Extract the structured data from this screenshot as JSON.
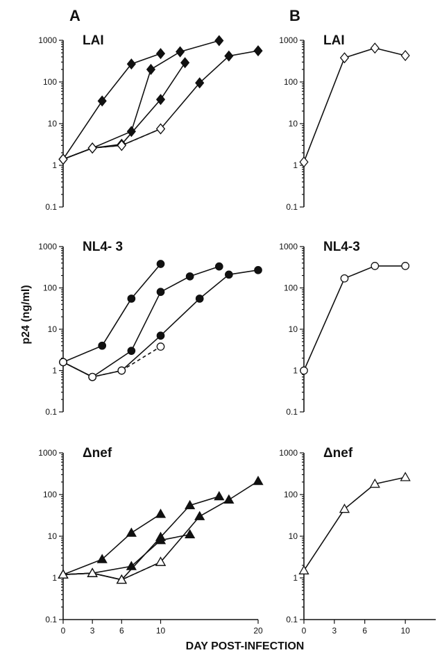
{
  "figure": {
    "panel_letters": [
      "A",
      "B"
    ],
    "ylabel": "p24 (ng/ml)",
    "xlabel": "DAY POST-INFECTION"
  },
  "chart_data": [
    {
      "type": "line",
      "panel": "A",
      "title": "LAI",
      "yscale": "log",
      "ylim": [
        0.1,
        1000
      ],
      "yticks": [
        "0.1",
        "1",
        "10",
        "100",
        "1000"
      ],
      "xlim": [
        0,
        20
      ],
      "xticks": [
        "0",
        "3",
        "6",
        "10",
        "20"
      ],
      "marker": "diamond",
      "series": [
        {
          "style": "solid",
          "filled": true,
          "x": [
            0,
            4,
            7,
            10
          ],
          "y": [
            1.4,
            35,
            270,
            480
          ]
        },
        {
          "style": "solid",
          "filled": true,
          "x": [
            0,
            3,
            7,
            9,
            12,
            16
          ],
          "y": [
            1.4,
            2.6,
            6.5,
            200,
            530,
            980
          ]
        },
        {
          "style": "solid",
          "filled": true,
          "x": [
            0,
            3,
            6,
            10,
            12.5
          ],
          "y": [
            1.4,
            2.6,
            3.2,
            38,
            290
          ]
        },
        {
          "style": "solid",
          "filled": true,
          "x": [
            0,
            3,
            6,
            10,
            14,
            17,
            20
          ],
          "y": [
            1.4,
            2.6,
            3.0,
            7.5,
            95,
            420,
            560
          ]
        },
        {
          "style": "dashed",
          "filled": false,
          "x": [
            0,
            3,
            6,
            10
          ],
          "y": [
            1.4,
            2.6,
            3.0,
            7.5
          ]
        }
      ]
    },
    {
      "type": "line",
      "panel": "B",
      "title": "LAI",
      "yscale": "log",
      "ylim": [
        0.1,
        1000
      ],
      "yticks": [
        "0.1",
        "1",
        "10",
        "100",
        "1000"
      ],
      "xlim": [
        0,
        13
      ],
      "xticks": [
        "0",
        "3",
        "6",
        "10"
      ],
      "marker": "diamond",
      "series": [
        {
          "style": "solid",
          "filled": false,
          "x": [
            0,
            4,
            7,
            10
          ],
          "y": [
            1.2,
            380,
            650,
            430
          ]
        }
      ]
    },
    {
      "type": "line",
      "panel": "A",
      "title": "NL4- 3",
      "yscale": "log",
      "ylim": [
        0.1,
        1000
      ],
      "yticks": [
        "0.1",
        "1",
        "10",
        "100",
        "1000"
      ],
      "xlim": [
        0,
        20
      ],
      "xticks": [
        "0",
        "3",
        "6",
        "10",
        "20"
      ],
      "marker": "circle",
      "series": [
        {
          "style": "solid",
          "filled": true,
          "x": [
            0,
            4,
            7,
            10
          ],
          "y": [
            1.6,
            4.0,
            55,
            380
          ]
        },
        {
          "style": "solid",
          "filled": true,
          "x": [
            0,
            3,
            7,
            10,
            13,
            16
          ],
          "y": [
            1.6,
            0.7,
            3.0,
            80,
            190,
            330
          ]
        },
        {
          "style": "solid",
          "filled": true,
          "x": [
            0,
            3,
            6,
            10,
            14,
            17,
            20
          ],
          "y": [
            1.6,
            0.7,
            1.0,
            7.0,
            55,
            210,
            270
          ]
        },
        {
          "style": "dashed",
          "filled": false,
          "x": [
            0,
            3,
            6,
            10
          ],
          "y": [
            1.6,
            0.7,
            1.0,
            3.8
          ]
        }
      ]
    },
    {
      "type": "line",
      "panel": "B",
      "title": "NL4-3",
      "yscale": "log",
      "ylim": [
        0.1,
        1000
      ],
      "yticks": [
        "0.1",
        "1",
        "10",
        "100",
        "1000"
      ],
      "xlim": [
        0,
        13
      ],
      "xticks": [
        "0",
        "3",
        "6",
        "10"
      ],
      "marker": "circle",
      "series": [
        {
          "style": "solid",
          "filled": false,
          "x": [
            0,
            4,
            7,
            10
          ],
          "y": [
            1.0,
            170,
            340,
            340
          ]
        }
      ]
    },
    {
      "type": "line",
      "panel": "A",
      "title": "Δnef",
      "yscale": "log",
      "ylim": [
        0.1,
        1000
      ],
      "yticks": [
        "0.1",
        "1",
        "10",
        "100",
        "1000"
      ],
      "xlim": [
        0,
        20
      ],
      "xticks": [
        "0",
        "3",
        "6",
        "10",
        "20"
      ],
      "marker": "triangle",
      "series": [
        {
          "style": "solid",
          "filled": true,
          "x": [
            0,
            4,
            7,
            10
          ],
          "y": [
            1.2,
            2.8,
            12,
            34
          ]
        },
        {
          "style": "solid",
          "filled": true,
          "x": [
            0,
            3,
            7,
            10,
            13
          ],
          "y": [
            1.2,
            1.3,
            1.9,
            8.0,
            11
          ]
        },
        {
          "style": "solid",
          "filled": true,
          "x": [
            0,
            3,
            6,
            10,
            13,
            16
          ],
          "y": [
            1.2,
            1.3,
            0.9,
            9.5,
            55,
            90
          ]
        },
        {
          "style": "solid",
          "filled": true,
          "x": [
            0,
            3,
            6,
            10,
            14,
            17,
            20
          ],
          "y": [
            1.2,
            1.3,
            0.9,
            2.4,
            30,
            75,
            210
          ]
        },
        {
          "style": "dashed",
          "filled": false,
          "x": [
            0,
            3,
            6,
            10
          ],
          "y": [
            1.2,
            1.3,
            0.9,
            2.4
          ]
        }
      ]
    },
    {
      "type": "line",
      "panel": "B",
      "title": "Δnef",
      "yscale": "log",
      "ylim": [
        0.1,
        1000
      ],
      "yticks": [
        "0.1",
        "1",
        "10",
        "100",
        "1000"
      ],
      "xlim": [
        0,
        13
      ],
      "xticks": [
        "0",
        "3",
        "6",
        "10"
      ],
      "marker": "triangle",
      "series": [
        {
          "style": "solid",
          "filled": false,
          "x": [
            0,
            4,
            7,
            10
          ],
          "y": [
            1.5,
            45,
            180,
            260
          ]
        }
      ]
    }
  ]
}
